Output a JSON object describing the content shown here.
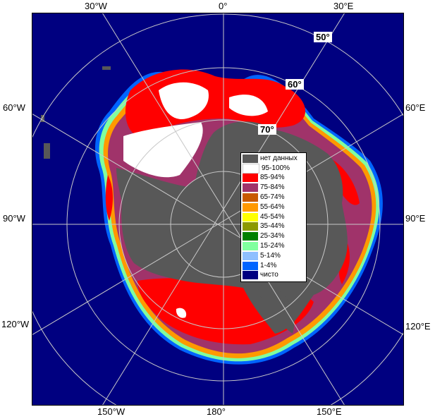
{
  "map": {
    "lon_labels": {
      "top_left": "30°W",
      "top_center": "0°",
      "top_right": "30°E",
      "left_upper": "60°W",
      "right_upper": "60°E",
      "left_middle": "90°W",
      "right_middle": "90°E",
      "left_lower": "120°W",
      "right_lower": "120°E",
      "bottom_left": "150°W",
      "bottom_center": "180°",
      "bottom_right": "150°E"
    },
    "lat_labels": {
      "lat50": "50°",
      "lat60": "60°",
      "lat70": "70°"
    },
    "colors": {
      "open_water": "#000080",
      "no_data": "#585858",
      "conc_95_100": "#ffffff",
      "conc_85_94": "#ff0000",
      "conc_75_84": "#a0336a",
      "conc_65_74": "#c85a00",
      "conc_55_64": "#ff9900",
      "conc_45_54": "#ffff00",
      "conc_35_44": "#8c9900",
      "conc_25_34": "#008000",
      "conc_15_24": "#80ff9f",
      "conc_5_14": "#8fbfff",
      "conc_1_4": "#0064ff",
      "grid": "#c8c8c8"
    }
  },
  "legend": {
    "items": [
      {
        "label": "нет данных",
        "color": "#585858"
      },
      {
        "label": "95-100%",
        "color": "#ffffff"
      },
      {
        "label": "85-94%",
        "color": "#ff0000"
      },
      {
        "label": "75-84%",
        "color": "#a0336a"
      },
      {
        "label": "65-74%",
        "color": "#c85a00"
      },
      {
        "label": "55-64%",
        "color": "#ff9900"
      },
      {
        "label": "45-54%",
        "color": "#ffff00"
      },
      {
        "label": "35-44%",
        "color": "#8c9900"
      },
      {
        "label": "25-34%",
        "color": "#008000"
      },
      {
        "label": "15-24%",
        "color": "#80ff9f"
      },
      {
        "label": "5-14%",
        "color": "#8fbfff"
      },
      {
        "label": "1-4%",
        "color": "#0064ff"
      },
      {
        "label": "чисто",
        "color": "#000080"
      }
    ]
  }
}
